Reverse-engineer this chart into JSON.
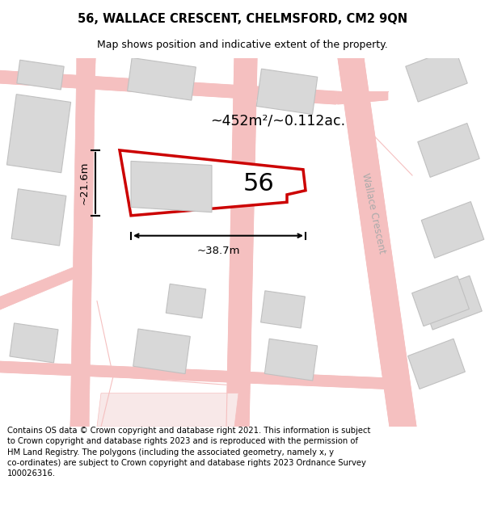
{
  "title": "56, WALLACE CRESCENT, CHELMSFORD, CM2 9QN",
  "subtitle": "Map shows position and indicative extent of the property.",
  "area_label": "~452m²/~0.112ac.",
  "width_label": "~38.7m",
  "height_label": "~21.6m",
  "number_label": "56",
  "street_label": "Wallace Crescent",
  "footer_text": "Contains OS data © Crown copyright and database right 2021. This information is subject to Crown copyright and database rights 2023 and is reproduced with the permission of HM Land Registry. The polygons (including the associated geometry, namely x, y co-ordinates) are subject to Crown copyright and database rights 2023 Ordnance Survey 100026316.",
  "bg_color": "#ffffff",
  "plot_color": "#cc0000",
  "road_color": "#f5c0c0",
  "building_color": "#d8d8d8",
  "building_edge": "#c0c0c0",
  "title_fontsize": 10.5,
  "subtitle_fontsize": 9,
  "footer_fontsize": 7.2,
  "map_xlim": [
    0,
    600
  ],
  "map_ylim": [
    0,
    440
  ]
}
